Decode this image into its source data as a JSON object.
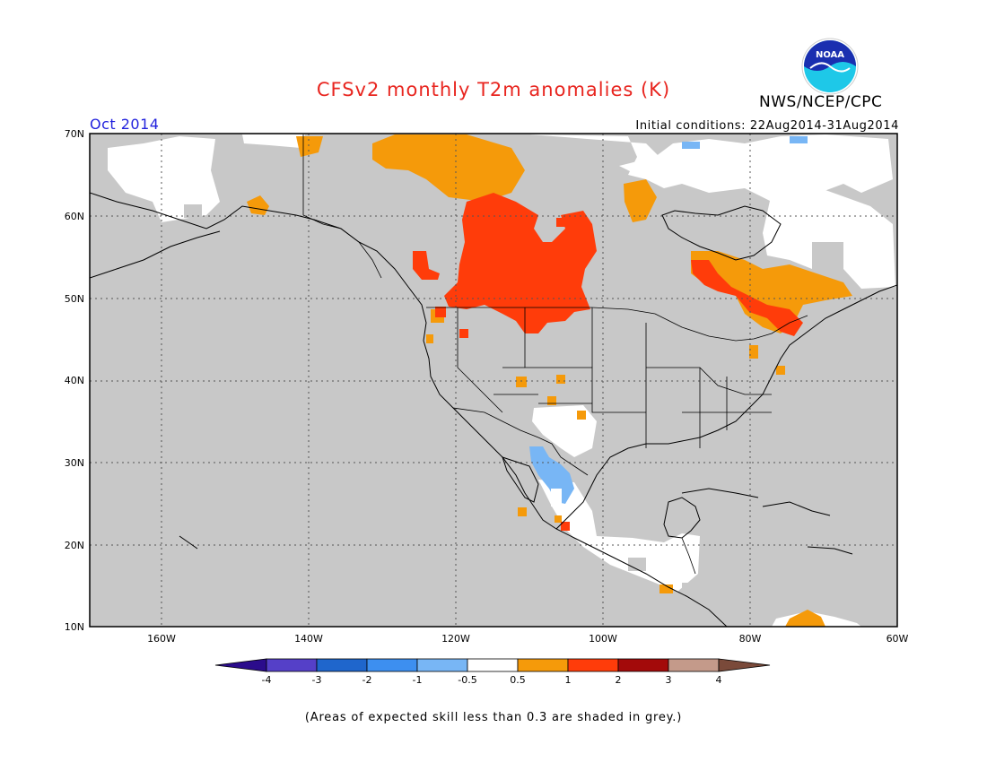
{
  "title": "CFSv2 monthly T2m anomalies (K)",
  "organization": "NWS/NCEP/CPC",
  "logo_text": "NOAA",
  "valid_month": "Oct 2014",
  "initial_conditions": "Initial conditions: 22Aug2014-31Aug2014",
  "lat_labels": [
    "70N",
    "60N",
    "50N",
    "40N",
    "30N",
    "20N",
    "10N"
  ],
  "lon_labels": [
    "160W",
    "140W",
    "120W",
    "100W",
    "80W",
    "60W"
  ],
  "colorbar": {
    "labels": [
      "-4",
      "-3",
      "-2",
      "-1",
      "-0.5",
      "0.5",
      "1",
      "2",
      "3",
      "4"
    ],
    "colors": [
      "#2b0c8c",
      "#5540c8",
      "#1f66cc",
      "#3d8ff0",
      "#78b6f5",
      "#ffffff",
      "#f59a0a",
      "#ff3c0a",
      "#a30a0a",
      "#c49a8a",
      "#7a4a3a"
    ]
  },
  "footnote": "(Areas of expected skill less than 0.3 are shaded in grey.)",
  "colors": {
    "title": "#e8251f",
    "month": "#2222dd",
    "low_skill_grey": "#c8c8c8",
    "warm_0_5_1": "#f59a0a",
    "warm_1_2": "#ff3c0a",
    "cool_neg_0_5_1": "#78b6f5"
  }
}
